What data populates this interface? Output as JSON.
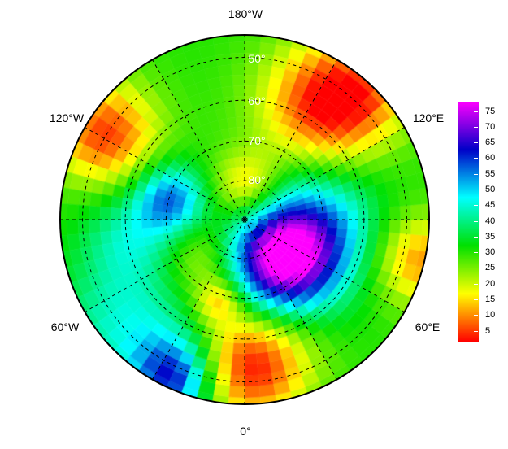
{
  "map": {
    "projection": "north polar stereographic",
    "lat_labels": [
      "50°",
      "60°",
      "70°",
      "80°"
    ],
    "lon_labels": {
      "top": "180°W",
      "bottom": "0°",
      "upper_left": "120°W",
      "upper_right": "120°E",
      "lower_left": "60°W",
      "lower_right": "60°E"
    }
  },
  "colorbar": {
    "ticks": [
      "5",
      "10",
      "15",
      "20",
      "25",
      "30",
      "35",
      "40",
      "45",
      "50",
      "55",
      "60",
      "65",
      "70",
      "75"
    ],
    "range": [
      1.5,
      78
    ],
    "colors": [
      "#ff0000",
      "#ffff00",
      "#00e000",
      "#00ffff",
      "#0000c8",
      "#ff00ff"
    ]
  }
}
